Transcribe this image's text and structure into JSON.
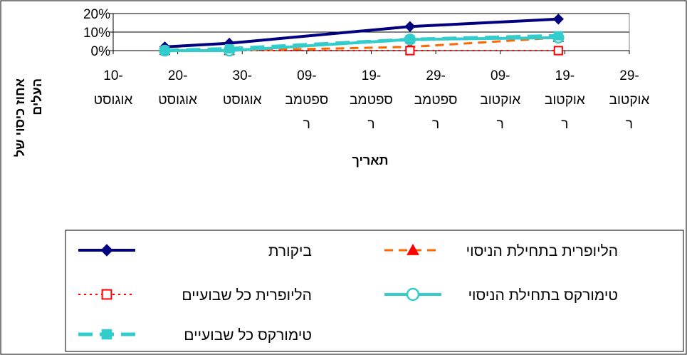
{
  "chart_data": {
    "type": "line",
    "title": "",
    "xlabel": "תאריך",
    "ylabel_lines": [
      "אחוז כיסוי של",
      "העלים"
    ],
    "ylim": [
      0,
      20
    ],
    "yticks": [
      "0%",
      "10%",
      "20%"
    ],
    "yticks_values": [
      0,
      10,
      20
    ],
    "grid": true,
    "legend_position": "bottom",
    "categories": [
      [
        "10-",
        "אוגוסט"
      ],
      [
        "20-",
        "אוגוסט"
      ],
      [
        "30-",
        "אוגוסט"
      ],
      [
        "09-",
        "ספטמב",
        "ר"
      ],
      [
        "19-",
        "ספטמב",
        "ר"
      ],
      [
        "29-",
        "ספטמב",
        "ר"
      ],
      [
        "09-",
        "אוקטוב",
        "ר"
      ],
      [
        "19-",
        "אוקטוב",
        "ר"
      ],
      [
        "29-",
        "אוקטוב",
        "ר"
      ]
    ],
    "x_dates": [
      "2000-08-10",
      "2000-08-20",
      "2000-08-30",
      "2000-09-09",
      "2000-09-19",
      "2000-09-29",
      "2000-10-09",
      "2000-10-19",
      "2000-10-29"
    ],
    "series": [
      {
        "name": "ביקורת",
        "color": "#000080",
        "dash": "solid",
        "marker": "diamond",
        "points": [
          [
            "2000-08-18",
            2
          ],
          [
            "2000-08-28",
            4
          ],
          [
            "2000-09-25",
            13
          ],
          [
            "2000-10-18",
            17
          ]
        ]
      },
      {
        "name": "הליופרית בתחילת הניסוי",
        "color": "#FF6600",
        "marker_color": "#FF0000",
        "dash": "dash",
        "marker": "triangle",
        "points": [
          [
            "2000-08-18",
            0
          ],
          [
            "2000-08-28",
            0
          ],
          [
            "2000-09-25",
            2
          ],
          [
            "2000-10-18",
            7
          ]
        ]
      },
      {
        "name": "הליופרית כל שבועיים",
        "color": "#FF0000",
        "dash": "dot",
        "marker": "square-open",
        "points": [
          [
            "2000-08-18",
            0
          ],
          [
            "2000-08-28",
            0
          ],
          [
            "2000-09-25",
            0
          ],
          [
            "2000-10-18",
            0
          ]
        ]
      },
      {
        "name": "טימורקס בתחילת הניסוי",
        "color": "#33CCCC",
        "dash": "solid",
        "marker": "circle-open",
        "points": [
          [
            "2000-08-18",
            0
          ],
          [
            "2000-08-28",
            0
          ],
          [
            "2000-09-25",
            6
          ],
          [
            "2000-10-18",
            7
          ]
        ]
      },
      {
        "name": "טימורקס כל שבועיים",
        "color": "#33CCCC",
        "dash": "longdash",
        "marker": "square-filled",
        "points": [
          [
            "2000-08-18",
            0
          ],
          [
            "2000-08-28",
            1
          ],
          [
            "2000-09-25",
            6
          ],
          [
            "2000-10-18",
            8
          ]
        ]
      }
    ]
  }
}
